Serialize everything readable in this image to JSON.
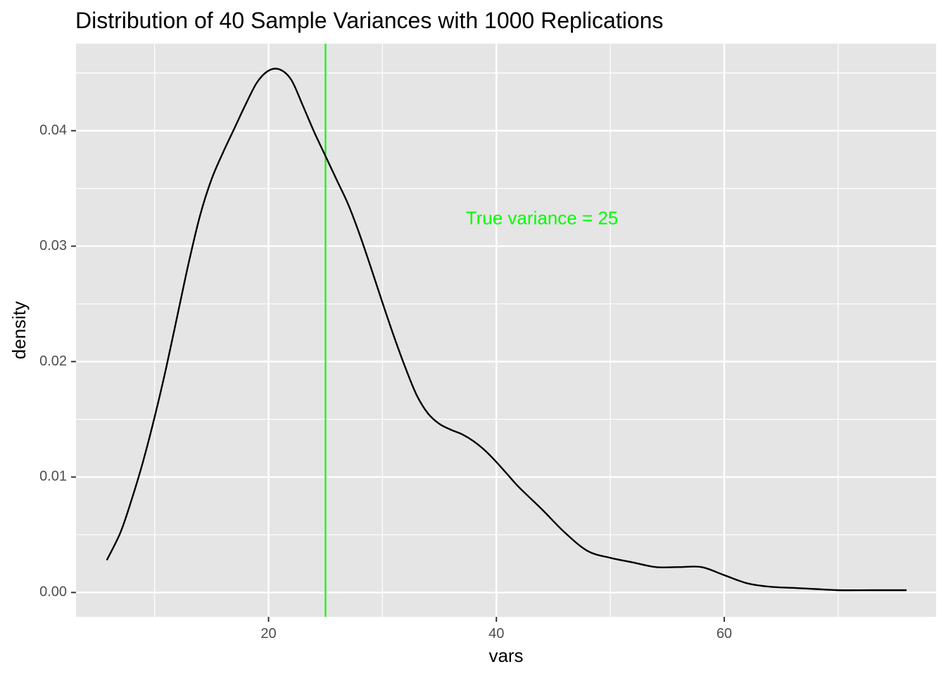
{
  "chart_data": {
    "type": "line",
    "title": "Distribution of 40 Sample Variances with 1000 Replications",
    "xlabel": "vars",
    "ylabel": "density",
    "xlim": [
      3.1,
      78.6
    ],
    "ylim": [
      -0.00211,
      0.04754
    ],
    "x_ticks": [
      20,
      40,
      60
    ],
    "x_tick_labels": [
      "20",
      "40",
      "60"
    ],
    "x_minor_ticks": [
      10,
      30,
      50,
      70
    ],
    "y_ticks": [
      0,
      0.01,
      0.02,
      0.03,
      0.04
    ],
    "y_tick_labels": [
      "0.00",
      "0.01",
      "0.02",
      "0.03",
      "0.04"
    ],
    "y_minor_ticks": [
      0.005,
      0.015,
      0.025,
      0.035,
      0.045
    ],
    "grid": true,
    "legend": "none",
    "series": [
      {
        "x": [
          5.8,
          7.0,
          8.0,
          9.0,
          10.0,
          11.0,
          12.0,
          13.0,
          14.0,
          15.0,
          16.0,
          17.0,
          18.0,
          19.0,
          20.0,
          21.0,
          22.0,
          23.0,
          24.0,
          25.0,
          26.0,
          27.0,
          28.0,
          29.0,
          30.0,
          31.0,
          32.0,
          33.0,
          34.0,
          35.0,
          36.0,
          37.0,
          38.0,
          39.0,
          40.0,
          41.0,
          42.0,
          44.0,
          46.0,
          48.0,
          50.0,
          52.0,
          54.0,
          56.0,
          58.0,
          60.0,
          62.0,
          64.0,
          66.0,
          68.0,
          70.0,
          73.0,
          76.0
        ],
        "y": [
          0.0028,
          0.0052,
          0.0081,
          0.0114,
          0.0152,
          0.0194,
          0.024,
          0.0286,
          0.0327,
          0.0358,
          0.0381,
          0.0402,
          0.0423,
          0.0442,
          0.0452,
          0.0453,
          0.0444,
          0.0422,
          0.0399,
          0.0378,
          0.0357,
          0.0336,
          0.031,
          0.0281,
          0.0251,
          0.0222,
          0.0195,
          0.0171,
          0.0155,
          0.0146,
          0.0141,
          0.0137,
          0.0131,
          0.0123,
          0.0113,
          0.0102,
          0.0091,
          0.0072,
          0.0052,
          0.0036,
          0.003,
          0.0026,
          0.0022,
          0.0022,
          0.0022,
          0.0015,
          0.0008,
          0.0005,
          0.0004,
          0.0003,
          0.0002,
          0.0002,
          0.0002
        ],
        "color": "#000000"
      }
    ],
    "vline": {
      "x": 25,
      "color": "#00ff00"
    },
    "annotation": {
      "text": "True variance = 25",
      "x": 44,
      "y": 0.0323,
      "color": "#00ff00"
    },
    "panel_background": "#e5e5e5",
    "grid_color": "#ffffff"
  }
}
